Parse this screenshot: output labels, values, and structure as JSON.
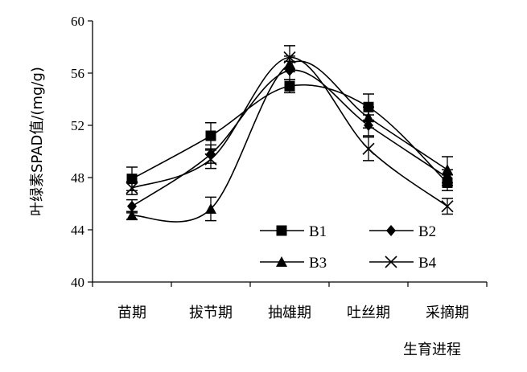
{
  "chart_data": {
    "type": "line",
    "title": "",
    "xlabel": "生育进程",
    "ylabel": "叶绿素SPAD值/(mg/g)",
    "ylim": [
      40,
      60
    ],
    "yticks": [
      40,
      44,
      48,
      52,
      56,
      60
    ],
    "categories": [
      "苗期",
      "拔节期",
      "抽雄期",
      "吐丝期",
      "采摘期"
    ],
    "grid": false,
    "legend_position": "bottom-right",
    "series": [
      {
        "name": "B1",
        "marker": "square",
        "values": [
          47.9,
          51.2,
          55.0,
          53.4,
          47.6
        ],
        "errors": [
          0.9,
          1.0,
          0.5,
          1.0,
          0.6
        ]
      },
      {
        "name": "B2",
        "marker": "diamond",
        "values": [
          45.8,
          49.8,
          56.2,
          52.0,
          48.0
        ],
        "errors": [
          0.5,
          0.7,
          0.7,
          0.8,
          0.6
        ]
      },
      {
        "name": "B3",
        "marker": "triangle",
        "values": [
          45.1,
          45.6,
          56.7,
          52.6,
          48.6
        ],
        "errors": [
          0.3,
          0.9,
          0.6,
          0.8,
          1.0
        ]
      },
      {
        "name": "B4",
        "marker": "x",
        "values": [
          47.2,
          49.4,
          57.2,
          50.2,
          45.8
        ],
        "errors": [
          0.5,
          0.7,
          0.9,
          0.9,
          0.6
        ]
      }
    ]
  }
}
